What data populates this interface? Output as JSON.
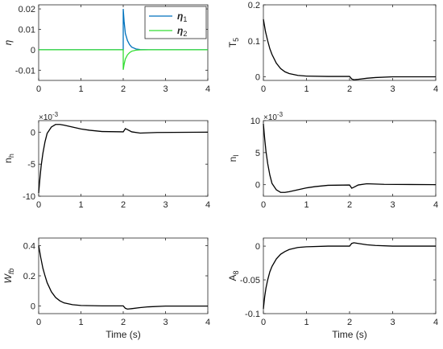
{
  "chart_data": [
    {
      "type": "line",
      "ylabel": "η",
      "xlabel": "",
      "xlim": [
        0,
        4
      ],
      "ylim": [
        -0.015,
        0.022
      ],
      "xticks": [
        "0",
        "1",
        "2",
        "3",
        "4"
      ],
      "yticks": [
        "-0.01",
        "0",
        "0.01",
        "0.02"
      ],
      "yticks_values": [
        -0.01,
        0,
        0.01,
        0.02
      ],
      "legend": {
        "position": "top-right",
        "entries": [
          "η1",
          "η2"
        ]
      },
      "series": [
        {
          "name": "η1",
          "color": "#0072BD",
          "x": [
            0,
            2.0,
            2.0,
            2.02,
            2.05,
            2.1,
            2.15,
            2.2,
            2.3,
            2.4,
            2.6,
            4
          ],
          "y": [
            0,
            0,
            0.02,
            0.014,
            0.008,
            0.0045,
            0.0025,
            0.0013,
            0.0004,
            0.0001,
            0,
            0
          ]
        },
        {
          "name": "η2",
          "color": "#33DD33",
          "x": [
            0,
            2.0,
            2.0,
            2.02,
            2.05,
            2.1,
            2.15,
            2.2,
            2.3,
            2.4,
            2.6,
            4
          ],
          "y": [
            0,
            0,
            -0.0098,
            -0.0072,
            -0.0045,
            -0.0025,
            -0.0014,
            -0.0007,
            -0.0002,
            -5e-05,
            0,
            0
          ]
        }
      ]
    },
    {
      "type": "line",
      "ylabel": "T",
      "ylabel_sub": "5",
      "xlabel": "",
      "xlim": [
        0,
        4
      ],
      "ylim": [
        -0.01,
        0.2
      ],
      "xticks": [
        "0",
        "1",
        "2",
        "3",
        "4"
      ],
      "yticks": [
        "0",
        "0.1",
        "0.2"
      ],
      "yticks_values": [
        0,
        0.1,
        0.2
      ],
      "series": [
        {
          "color": "#000000",
          "x": [
            0,
            0.05,
            0.1,
            0.15,
            0.2,
            0.3,
            0.4,
            0.5,
            0.6,
            0.8,
            1.0,
            1.5,
            2.0,
            2.05,
            2.1,
            2.2,
            2.4,
            2.6,
            3.0,
            4.0
          ],
          "y": [
            0.16,
            0.125,
            0.1,
            0.078,
            0.062,
            0.038,
            0.023,
            0.014,
            0.009,
            0.004,
            0.002,
            0.001,
            0.001,
            -0.006,
            -0.008,
            -0.007,
            -0.004,
            -0.002,
            0,
            0
          ]
        }
      ]
    },
    {
      "type": "line",
      "ylabel": "n",
      "ylabel_sub": "h",
      "multiplier": "×10-3",
      "xlabel": "",
      "xlim": [
        0,
        4
      ],
      "ylim": [
        -10,
        1.8
      ],
      "xticks": [
        "0",
        "1",
        "2",
        "3",
        "4"
      ],
      "yticks": [
        "-10",
        "-5",
        "0"
      ],
      "yticks_values": [
        -10,
        -5,
        0
      ],
      "series": [
        {
          "color": "#000000",
          "x": [
            0,
            0.03,
            0.06,
            0.1,
            0.15,
            0.2,
            0.3,
            0.4,
            0.5,
            0.6,
            0.8,
            1.0,
            1.2,
            1.5,
            2.0,
            2.05,
            2.1,
            2.2,
            2.4,
            2.8,
            4.0
          ],
          "y": [
            -9.5,
            -7.2,
            -5.2,
            -3.3,
            -1.5,
            -0.2,
            0.8,
            1.2,
            1.2,
            1.1,
            0.8,
            0.5,
            0.3,
            0.1,
            0.05,
            0.55,
            0.4,
            0.05,
            -0.15,
            -0.05,
            0
          ]
        }
      ]
    },
    {
      "type": "line",
      "ylabel": "n",
      "ylabel_sub": "l",
      "multiplier": "×10-3",
      "xlabel": "",
      "xlim": [
        0,
        4
      ],
      "ylim": [
        -1.8,
        10
      ],
      "xticks": [
        "0",
        "1",
        "2",
        "3",
        "4"
      ],
      "yticks": [
        "0",
        "5",
        "10"
      ],
      "yticks_values": [
        0,
        5,
        10
      ],
      "series": [
        {
          "color": "#000000",
          "x": [
            0,
            0.03,
            0.06,
            0.1,
            0.15,
            0.2,
            0.3,
            0.4,
            0.5,
            0.6,
            0.8,
            1.0,
            1.2,
            1.5,
            2.0,
            2.05,
            2.1,
            2.2,
            2.4,
            2.8,
            4.0
          ],
          "y": [
            9.5,
            7.2,
            5.2,
            3.3,
            1.5,
            0.2,
            -0.8,
            -1.2,
            -1.2,
            -1.1,
            -0.8,
            -0.5,
            -0.3,
            -0.1,
            -0.05,
            -0.55,
            -0.4,
            -0.05,
            0.15,
            0.05,
            0
          ]
        }
      ]
    },
    {
      "type": "line",
      "ylabel": "W",
      "ylabel_sub": "fb",
      "xlabel": "Time (s)",
      "xlim": [
        0,
        4
      ],
      "ylim": [
        -0.05,
        0.45
      ],
      "xticks": [
        "0",
        "1",
        "2",
        "3",
        "4"
      ],
      "yticks": [
        "0",
        "0.2",
        "0.4"
      ],
      "yticks_values": [
        0,
        0.2,
        0.4
      ],
      "series": [
        {
          "color": "#000000",
          "x": [
            0,
            0.05,
            0.1,
            0.15,
            0.2,
            0.3,
            0.4,
            0.5,
            0.6,
            0.8,
            1.0,
            1.5,
            2.0,
            2.05,
            2.1,
            2.2,
            2.4,
            2.6,
            3.0,
            4.0
          ],
          "y": [
            0.4,
            0.32,
            0.25,
            0.2,
            0.155,
            0.095,
            0.057,
            0.035,
            0.021,
            0.009,
            0.004,
            0.001,
            0.001,
            -0.015,
            -0.02,
            -0.017,
            -0.01,
            -0.005,
            0,
            0
          ]
        }
      ]
    },
    {
      "type": "line",
      "ylabel": "A",
      "ylabel_sub": "8",
      "xlabel": "Time (s)",
      "xlim": [
        0,
        4
      ],
      "ylim": [
        -0.1,
        0.012
      ],
      "xticks": [
        "0",
        "1",
        "2",
        "3",
        "4"
      ],
      "yticks": [
        "-0.1",
        "-0.05",
        "0"
      ],
      "yticks_values": [
        -0.1,
        -0.05,
        0
      ],
      "series": [
        {
          "color": "#000000",
          "x": [
            0,
            0.03,
            0.06,
            0.1,
            0.15,
            0.2,
            0.3,
            0.4,
            0.5,
            0.6,
            0.8,
            1.0,
            1.5,
            2.0,
            2.05,
            2.1,
            2.2,
            2.4,
            2.6,
            3.0,
            4.0
          ],
          "y": [
            -0.093,
            -0.075,
            -0.062,
            -0.05,
            -0.038,
            -0.03,
            -0.019,
            -0.012,
            -0.008,
            -0.005,
            -0.002,
            -0.001,
            0,
            0,
            0.004,
            0.005,
            0.004,
            0.002,
            0.001,
            0,
            0
          ]
        }
      ]
    }
  ]
}
